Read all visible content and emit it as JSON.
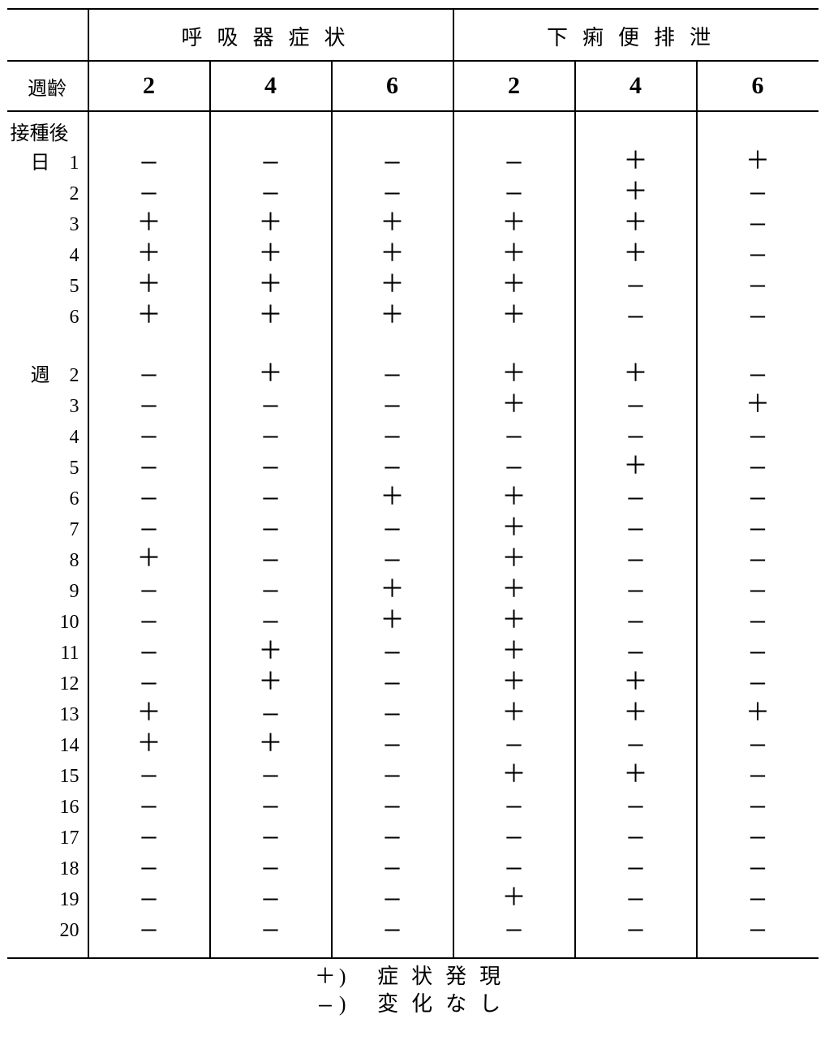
{
  "symbols": {
    "plus": "＋",
    "minus": "—"
  },
  "colors": {
    "ink": "#000000",
    "paper": "#ffffff"
  },
  "table": {
    "type": "table",
    "group_headers": [
      "呼吸器症状",
      "下痢便排泄"
    ],
    "age_label": "週齡",
    "sub_headers": [
      "2",
      "4",
      "6",
      "2",
      "4",
      "6"
    ],
    "section1_label": "接種後",
    "section1_unit": "日",
    "section2_unit": "週",
    "rows_days": [
      {
        "label": "1",
        "v": [
          "-",
          "-",
          "-",
          "-",
          "+",
          "+"
        ]
      },
      {
        "label": "2",
        "v": [
          "-",
          "-",
          "-",
          "-",
          "+",
          "-"
        ]
      },
      {
        "label": "3",
        "v": [
          "+",
          "+",
          "+",
          "+",
          "+",
          "-"
        ]
      },
      {
        "label": "4",
        "v": [
          "+",
          "+",
          "+",
          "+",
          "+",
          "-"
        ]
      },
      {
        "label": "5",
        "v": [
          "+",
          "+",
          "+",
          "+",
          "-",
          "-"
        ]
      },
      {
        "label": "6",
        "v": [
          "+",
          "+",
          "+",
          "+",
          "-",
          "-"
        ]
      }
    ],
    "rows_weeks": [
      {
        "label": "2",
        "v": [
          "-",
          "+",
          "-",
          "+",
          "+",
          "-"
        ]
      },
      {
        "label": "3",
        "v": [
          "-",
          "-",
          "-",
          "+",
          "-",
          "+"
        ]
      },
      {
        "label": "4",
        "v": [
          "-",
          "-",
          "-",
          "-",
          "-",
          "-"
        ]
      },
      {
        "label": "5",
        "v": [
          "-",
          "-",
          "-",
          "-",
          "+",
          "-"
        ]
      },
      {
        "label": "6",
        "v": [
          "-",
          "-",
          "+",
          "+",
          "-",
          "-"
        ]
      },
      {
        "label": "7",
        "v": [
          "-",
          "-",
          "-",
          "+",
          "-",
          "-"
        ]
      },
      {
        "label": "8",
        "v": [
          "+",
          "-",
          "-",
          "+",
          "-",
          "-"
        ]
      },
      {
        "label": "9",
        "v": [
          "-",
          "-",
          "+",
          "+",
          "-",
          "-"
        ]
      },
      {
        "label": "10",
        "v": [
          "-",
          "-",
          "+",
          "+",
          "-",
          "-"
        ]
      },
      {
        "label": "11",
        "v": [
          "-",
          "+",
          "-",
          "+",
          "-",
          "-"
        ]
      },
      {
        "label": "12",
        "v": [
          "-",
          "+",
          "-",
          "+",
          "+",
          "-"
        ]
      },
      {
        "label": "13",
        "v": [
          "+",
          "-",
          "-",
          "+",
          "+",
          "+"
        ]
      },
      {
        "label": "14",
        "v": [
          "+",
          "+",
          "-",
          "-",
          "-",
          "-"
        ]
      },
      {
        "label": "15",
        "v": [
          "-",
          "-",
          "-",
          "+",
          "+",
          "-"
        ]
      },
      {
        "label": "16",
        "v": [
          "-",
          "-",
          "-",
          "-",
          "-",
          "-"
        ]
      },
      {
        "label": "17",
        "v": [
          "-",
          "-",
          "-",
          "-",
          "-",
          "-"
        ]
      },
      {
        "label": "18",
        "v": [
          "-",
          "-",
          "-",
          "-",
          "-",
          "-"
        ]
      },
      {
        "label": "19",
        "v": [
          "-",
          "-",
          "-",
          "+",
          "-",
          "-"
        ]
      },
      {
        "label": "20",
        "v": [
          "-",
          "-",
          "-",
          "-",
          "-",
          "-"
        ]
      }
    ]
  },
  "legend": {
    "plus_text": "症状発現",
    "minus_text": "変化なし"
  }
}
